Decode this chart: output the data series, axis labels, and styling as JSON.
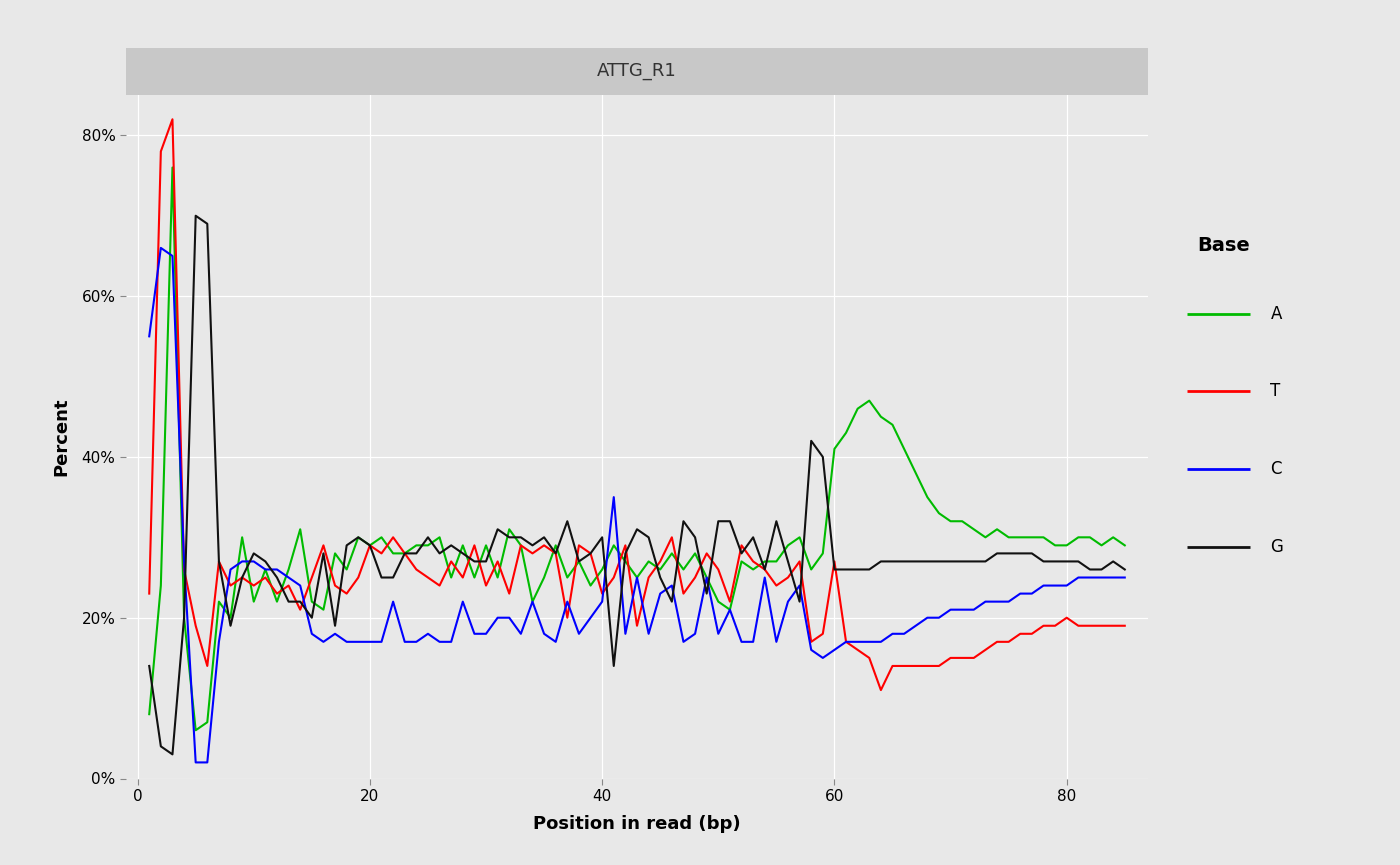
{
  "title": "ATTG_R1",
  "xlabel": "Position in read (bp)",
  "ylabel": "Percent",
  "bg_color": "#E8E8E8",
  "title_banner_color": "#C8C8C8",
  "title_fontsize": 13,
  "axis_label_fontsize": 13,
  "tick_fontsize": 11,
  "legend_title": "Base",
  "legend_title_fontsize": 14,
  "legend_fontsize": 12,
  "line_colors": {
    "A": "#00BB00",
    "T": "#FF0000",
    "C": "#0000FF",
    "G": "#111111"
  },
  "linewidth": 1.5,
  "ylim_pct": [
    0,
    85
  ],
  "yticks_pct": [
    0,
    20,
    40,
    60,
    80
  ],
  "xticks": [
    0,
    20,
    40,
    60,
    80
  ],
  "xmin": -1,
  "xmax": 87,
  "A_pct": [
    8,
    24,
    76,
    20,
    6,
    7,
    22,
    20,
    30,
    22,
    26,
    22,
    26,
    31,
    22,
    21,
    28,
    26,
    30,
    29,
    30,
    28,
    28,
    29,
    29,
    30,
    25,
    29,
    25,
    29,
    25,
    31,
    29,
    22,
    25,
    29,
    25,
    27,
    24,
    26,
    29,
    27,
    25,
    27,
    26,
    28,
    26,
    28,
    25,
    22,
    21,
    27,
    26,
    27,
    27,
    29,
    30,
    26,
    28,
    41,
    43,
    46,
    47,
    45,
    44,
    41,
    38,
    35,
    33,
    32,
    32,
    31,
    30,
    31,
    30,
    30,
    30,
    30,
    29,
    29,
    30,
    30,
    29,
    30,
    29
  ],
  "T_pct": [
    23,
    78,
    82,
    26,
    19,
    14,
    27,
    24,
    25,
    24,
    25,
    23,
    24,
    21,
    25,
    29,
    24,
    23,
    25,
    29,
    28,
    30,
    28,
    26,
    25,
    24,
    27,
    25,
    29,
    24,
    27,
    23,
    29,
    28,
    29,
    28,
    20,
    29,
    28,
    23,
    25,
    29,
    19,
    25,
    27,
    30,
    23,
    25,
    28,
    26,
    22,
    29,
    27,
    26,
    24,
    25,
    27,
    17,
    18,
    27,
    17,
    16,
    15,
    11,
    14,
    14,
    14,
    14,
    14,
    15,
    15,
    15,
    16,
    17,
    17,
    18,
    18,
    19,
    19,
    20,
    19,
    19,
    19,
    19,
    19
  ],
  "C_pct": [
    55,
    66,
    65,
    27,
    2,
    2,
    17,
    26,
    27,
    27,
    26,
    26,
    25,
    24,
    18,
    17,
    18,
    17,
    17,
    17,
    17,
    22,
    17,
    17,
    18,
    17,
    17,
    22,
    18,
    18,
    20,
    20,
    18,
    22,
    18,
    17,
    22,
    18,
    20,
    22,
    35,
    18,
    25,
    18,
    23,
    24,
    17,
    18,
    25,
    18,
    21,
    17,
    17,
    25,
    17,
    22,
    24,
    16,
    15,
    16,
    17,
    17,
    17,
    17,
    18,
    18,
    19,
    20,
    20,
    21,
    21,
    21,
    22,
    22,
    22,
    23,
    23,
    24,
    24,
    24,
    25,
    25,
    25,
    25,
    25
  ],
  "G_pct": [
    14,
    4,
    3,
    20,
    70,
    69,
    27,
    19,
    25,
    28,
    27,
    25,
    22,
    22,
    20,
    28,
    19,
    29,
    30,
    29,
    25,
    25,
    28,
    28,
    30,
    28,
    29,
    28,
    27,
    27,
    31,
    30,
    30,
    29,
    30,
    28,
    32,
    27,
    28,
    30,
    14,
    28,
    31,
    30,
    25,
    22,
    32,
    30,
    23,
    32,
    32,
    28,
    30,
    26,
    32,
    27,
    22,
    42,
    40,
    26,
    26,
    26,
    26,
    27,
    27,
    27,
    27,
    27,
    27,
    27,
    27,
    27,
    27,
    28,
    28,
    28,
    28,
    27,
    27,
    27,
    27,
    26,
    26,
    27,
    26
  ]
}
